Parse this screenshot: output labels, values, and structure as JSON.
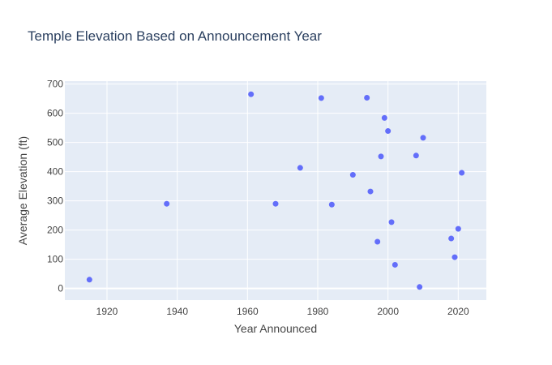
{
  "chart_data": {
    "type": "scatter",
    "title": "Temple Elevation Based on Announcement Year",
    "xlabel": "Year Announced",
    "ylabel": "Average Elevation (ft)",
    "xlim": [
      1908,
      2028
    ],
    "ylim": [
      -40,
      710
    ],
    "xticks": [
      1920,
      1940,
      1960,
      1980,
      2000,
      2020
    ],
    "yticks": [
      0,
      100,
      200,
      300,
      400,
      500,
      600,
      700
    ],
    "grid": true,
    "legend": "none",
    "colors": {
      "marker": "#636efa",
      "plot_bg": "#e5ecf6",
      "grid": "#ffffff",
      "text": "#444444",
      "title": "#2a3f5f"
    },
    "points": [
      {
        "x": 1915,
        "y": 30
      },
      {
        "x": 1937,
        "y": 290
      },
      {
        "x": 1961,
        "y": 665
      },
      {
        "x": 1968,
        "y": 290
      },
      {
        "x": 1975,
        "y": 413
      },
      {
        "x": 1981,
        "y": 652
      },
      {
        "x": 1984,
        "y": 287
      },
      {
        "x": 1990,
        "y": 389
      },
      {
        "x": 1994,
        "y": 653
      },
      {
        "x": 1995,
        "y": 332
      },
      {
        "x": 1997,
        "y": 160
      },
      {
        "x": 1998,
        "y": 452
      },
      {
        "x": 1999,
        "y": 584
      },
      {
        "x": 2000,
        "y": 539
      },
      {
        "x": 2001,
        "y": 227
      },
      {
        "x": 2002,
        "y": 81
      },
      {
        "x": 2008,
        "y": 455
      },
      {
        "x": 2009,
        "y": 5
      },
      {
        "x": 2010,
        "y": 516
      },
      {
        "x": 2018,
        "y": 171
      },
      {
        "x": 2019,
        "y": 107
      },
      {
        "x": 2020,
        "y": 204
      },
      {
        "x": 2021,
        "y": 396
      }
    ]
  }
}
